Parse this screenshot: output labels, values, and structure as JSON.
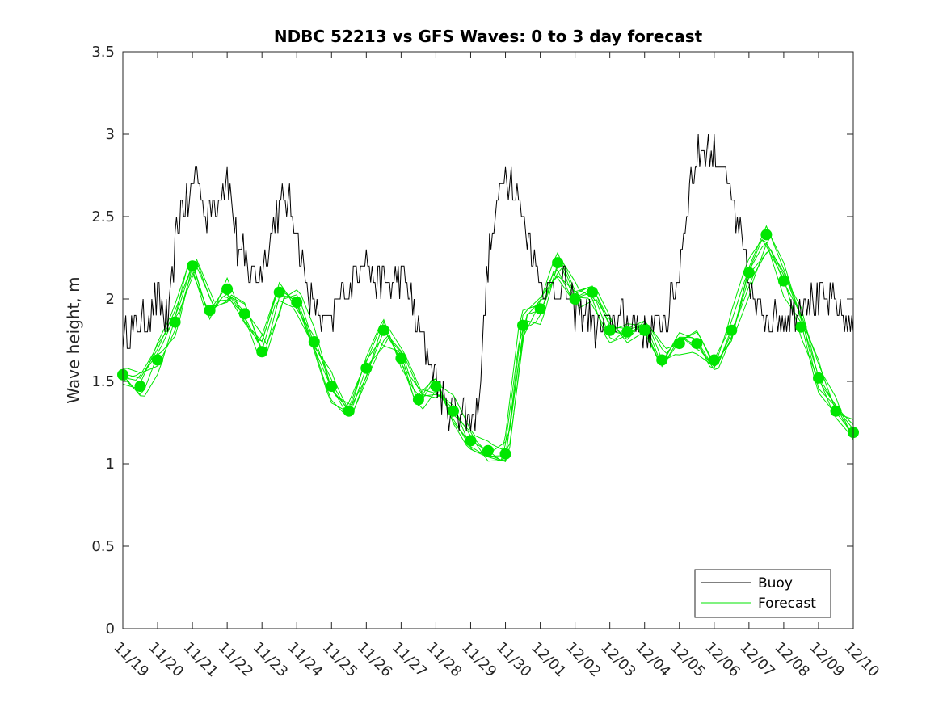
{
  "chart_data": {
    "type": "line",
    "title": "NDBC 52213 vs GFS Waves: 0 to 3 day forecast",
    "xlabel": "",
    "ylabel": "Wave height, m",
    "ylim": [
      0,
      3.5
    ],
    "xlim": [
      0,
      21
    ],
    "yticks": [
      0,
      0.5,
      1,
      1.5,
      2,
      2.5,
      3,
      3.5
    ],
    "ytick_labels": [
      "0",
      "0.5",
      "1",
      "1.5",
      "2",
      "2.5",
      "3",
      "3.5"
    ],
    "xtick_labels": [
      "11/19",
      "11/20",
      "11/21",
      "11/22",
      "11/23",
      "11/24",
      "11/25",
      "11/26",
      "11/27",
      "11/28",
      "11/29",
      "11/30",
      "12/01",
      "12/02",
      "12/03",
      "12/04",
      "12/05",
      "12/06",
      "12/07",
      "12/08",
      "12/09",
      "12/10"
    ],
    "legend": {
      "position": "bottom-right",
      "entries": [
        "Buoy",
        "Forecast"
      ]
    },
    "colors": {
      "buoy": "#000000",
      "forecast": "#00e600",
      "axis": "#262626"
    },
    "buoy_anchors": {
      "x": [
        0,
        0.3,
        0.6,
        1.0,
        1.3,
        1.6,
        1.9,
        2.1,
        2.4,
        2.7,
        3.0,
        3.3,
        3.6,
        4.0,
        4.3,
        4.6,
        4.9,
        5.2,
        5.5,
        5.8,
        6.0,
        6.3,
        6.6,
        6.9,
        7.2,
        7.5,
        7.8,
        8.1,
        8.4,
        8.7,
        9.0,
        9.3,
        9.6,
        9.9,
        10.2,
        10.5,
        10.8,
        11.0,
        11.2,
        11.5,
        11.8,
        12.1,
        12.4,
        12.7,
        13.0,
        13.3,
        13.6,
        13.9,
        14.2,
        14.5,
        14.8,
        15.1,
        15.4,
        15.7,
        16.0,
        16.3,
        16.6,
        16.9,
        17.2,
        17.5,
        17.8,
        18.1,
        18.4,
        18.7,
        19.0,
        19.3,
        19.6,
        19.9,
        20.2,
        20.5,
        20.8,
        21.0
      ],
      "y": [
        1.75,
        1.8,
        1.85,
        2.0,
        1.85,
        2.5,
        2.6,
        2.8,
        2.5,
        2.6,
        2.75,
        2.3,
        2.2,
        2.15,
        2.45,
        2.6,
        2.55,
        2.15,
        1.95,
        1.85,
        1.85,
        2.05,
        2.1,
        2.3,
        2.1,
        2.1,
        2.1,
        2.1,
        1.9,
        1.7,
        1.5,
        1.35,
        1.35,
        1.3,
        1.3,
        2.2,
        2.6,
        2.8,
        2.7,
        2.5,
        2.25,
        2.1,
        2.05,
        2.1,
        1.9,
        1.95,
        1.8,
        1.85,
        1.9,
        1.85,
        1.85,
        1.8,
        1.85,
        1.9,
        2.2,
        2.7,
        2.9,
        2.9,
        2.85,
        2.6,
        2.3,
        2.0,
        1.9,
        1.9,
        1.9,
        1.95,
        2.0,
        1.95,
        2.0,
        2.0,
        1.85,
        1.85
      ]
    },
    "forecast_markers": {
      "x": [
        0.0,
        0.5,
        1.0,
        1.5,
        2.0,
        2.5,
        3.0,
        3.5,
        4.0,
        4.5,
        5.0,
        5.5,
        6.0,
        6.5,
        7.0,
        7.5,
        8.0,
        8.5,
        9.0,
        9.5,
        10.0,
        10.5,
        11.0,
        11.5,
        12.0,
        12.5,
        13.0,
        13.5,
        14.0,
        14.5,
        15.0,
        15.5,
        16.0,
        16.5,
        17.0,
        17.5,
        18.0,
        18.5,
        19.0,
        19.5,
        20.0,
        20.5,
        21.0
      ],
      "y": [
        1.54,
        1.47,
        1.63,
        1.86,
        2.2,
        1.93,
        2.06,
        1.91,
        1.68,
        2.04,
        1.98,
        1.74,
        1.47,
        1.32,
        1.58,
        1.81,
        1.64,
        1.39,
        1.47,
        1.32,
        1.14,
        1.08,
        1.06,
        1.84,
        1.94,
        2.22,
        2.0,
        2.04,
        1.81,
        1.8,
        1.81,
        1.63,
        1.73,
        1.73,
        1.63,
        1.81,
        2.16,
        2.39,
        2.11,
        1.83,
        1.52,
        1.32,
        1.19
      ]
    },
    "forecast_runs": 7
  }
}
